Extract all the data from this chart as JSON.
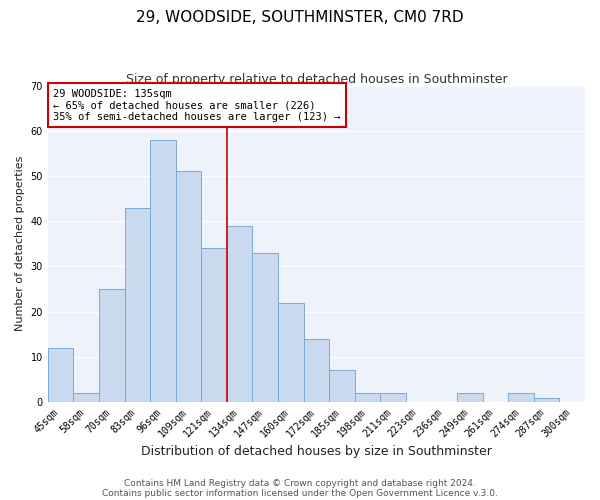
{
  "title": "29, WOODSIDE, SOUTHMINSTER, CM0 7RD",
  "subtitle": "Size of property relative to detached houses in Southminster",
  "xlabel": "Distribution of detached houses by size in Southminster",
  "ylabel": "Number of detached properties",
  "bar_labels": [
    "45sqm",
    "58sqm",
    "70sqm",
    "83sqm",
    "96sqm",
    "109sqm",
    "121sqm",
    "134sqm",
    "147sqm",
    "160sqm",
    "172sqm",
    "185sqm",
    "198sqm",
    "211sqm",
    "223sqm",
    "236sqm",
    "249sqm",
    "261sqm",
    "274sqm",
    "287sqm",
    "300sqm"
  ],
  "bar_values": [
    12,
    2,
    25,
    43,
    58,
    51,
    34,
    39,
    33,
    22,
    14,
    7,
    2,
    2,
    0,
    0,
    2,
    0,
    2,
    1,
    0
  ],
  "bar_color": "#c9d9f0",
  "bar_edge_color": "#7aabd4",
  "annotation_line_color": "#cc0000",
  "annotation_box_text": "29 WOODSIDE: 135sqm\n← 65% of detached houses are smaller (226)\n35% of semi-detached houses are larger (123) →",
  "annotation_box_color": "#cc0000",
  "ylim": [
    0,
    70
  ],
  "yticks": [
    0,
    10,
    20,
    30,
    40,
    50,
    60,
    70
  ],
  "footer_line1": "Contains HM Land Registry data © Crown copyright and database right 2024.",
  "footer_line2": "Contains public sector information licensed under the Open Government Licence v.3.0.",
  "plot_bg_color": "#eef2fb",
  "fig_bg_color": "#ffffff",
  "grid_color": "#ffffff",
  "title_fontsize": 11,
  "subtitle_fontsize": 9,
  "xlabel_fontsize": 9,
  "ylabel_fontsize": 8,
  "tick_fontsize": 7,
  "footer_fontsize": 6.5,
  "annot_fontsize": 7.5
}
